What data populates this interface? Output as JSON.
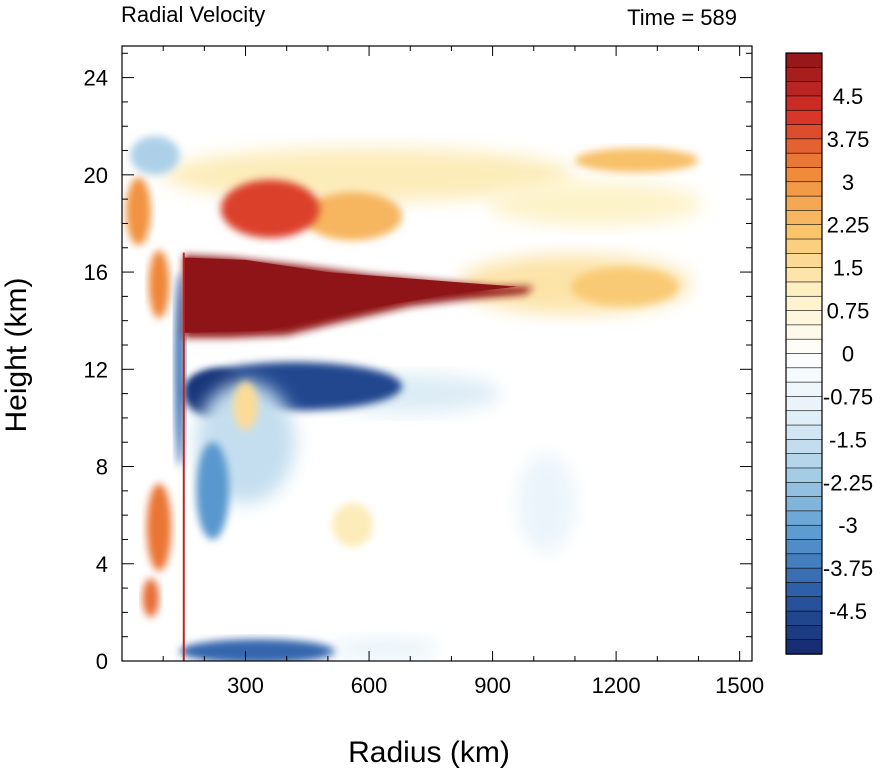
{
  "chart_data": {
    "type": "heatmap",
    "title": "Radial Velocity",
    "subtitle": "Time = 589",
    "xlabel": "Radius (km)",
    "ylabel": "Height (km)",
    "xlim": [
      0,
      1530
    ],
    "ylim": [
      0,
      25.3
    ],
    "x_ticks": [
      300,
      600,
      900,
      1200,
      1500
    ],
    "y_ticks": [
      0,
      4,
      8,
      12,
      16,
      20,
      24
    ],
    "grid": false,
    "colorbar": {
      "min": -5.25,
      "max": 5.25,
      "step": 0.25,
      "labels": [
        "4.5",
        "3.75",
        "3",
        "2.25",
        "1.5",
        "0.75",
        "0",
        "-0.75",
        "-1.5",
        "-2.25",
        "-3",
        "-3.75",
        "-4.5"
      ],
      "label_values": [
        4.5,
        3.75,
        3,
        2.25,
        1.5,
        0.75,
        0,
        -0.75,
        -1.5,
        -2.25,
        -3,
        -3.75,
        -4.5
      ],
      "colors": [
        "#14296b",
        "#2b5aa5",
        "#5a9bd0",
        "#a7cde6",
        "#e4f1f8",
        "#ffffff",
        "#fdf2c6",
        "#f9c66c",
        "#f08a3a",
        "#d63028",
        "#8e1418"
      ]
    },
    "features": [
      {
        "name": "upper-level outflow jet",
        "r": [
          150,
          1000
        ],
        "z": [
          13.3,
          16.7
        ],
        "value": 5.2
      },
      {
        "name": "outflow plume extension",
        "r": [
          950,
          1400
        ],
        "z": [
          14.5,
          17.0
        ],
        "value": 2.0
      },
      {
        "name": "upper outflow branch",
        "r": [
          250,
          520
        ],
        "z": [
          17.0,
          20.5
        ],
        "value": 4.0
      },
      {
        "name": "high-level outflow layer",
        "r": [
          300,
          1400
        ],
        "z": [
          18.5,
          21.0
        ],
        "value": 1.5
      },
      {
        "name": "mid-level inflow",
        "r": [
          160,
          700
        ],
        "z": [
          10.5,
          13.0
        ],
        "value": -4.8
      },
      {
        "name": "boundary-layer inflow",
        "r": [
          150,
          500
        ],
        "z": [
          0,
          1.0
        ],
        "value": -4.0
      },
      {
        "name": "eyewall updraft band",
        "r": [
          20,
          140
        ],
        "z": [
          3.0,
          8.0
        ],
        "value": 3.0
      }
    ]
  }
}
